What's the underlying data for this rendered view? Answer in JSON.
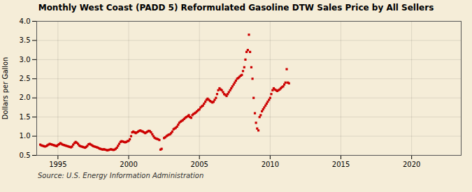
{
  "chart_data": {
    "type": "scatter",
    "title": "Monthly West Coast (PADD 5) Reformulated Gasoline DTW Sales Price by All Sellers",
    "ylabel": "Dollars per Gallon",
    "annotations": [
      "Source: U.S. Energy Information Administration"
    ],
    "color": "#cc0000",
    "marker": "square",
    "grid": true,
    "xlim": [
      1993.5,
      2023.5
    ],
    "ylim": [
      0.5,
      4.0
    ],
    "xticks": [
      1995,
      2000,
      2005,
      2010,
      2015,
      2020
    ],
    "yticks": [
      0.5,
      {
        "value": 1.0,
        "label": "1.0"
      },
      1.5,
      {
        "value": 2.0,
        "label": "2.0"
      },
      2.5,
      {
        "value": 3.0,
        "label": "3.0"
      },
      3.5,
      {
        "value": 4.0,
        "label": "4.0"
      }
    ],
    "x": [
      1993.75,
      1993.83,
      1993.92,
      1994.0,
      1994.08,
      1994.17,
      1994.25,
      1994.33,
      1994.42,
      1994.5,
      1994.58,
      1994.67,
      1994.75,
      1994.83,
      1994.92,
      1995.0,
      1995.08,
      1995.17,
      1995.25,
      1995.33,
      1995.42,
      1995.5,
      1995.58,
      1995.67,
      1995.75,
      1995.83,
      1995.92,
      1996.0,
      1996.08,
      1996.17,
      1996.25,
      1996.33,
      1996.42,
      1996.5,
      1996.58,
      1996.67,
      1996.75,
      1996.83,
      1996.92,
      1997.0,
      1997.08,
      1997.17,
      1997.25,
      1997.33,
      1997.42,
      1997.5,
      1997.58,
      1997.67,
      1997.75,
      1997.83,
      1997.92,
      1998.0,
      1998.08,
      1998.17,
      1998.25,
      1998.33,
      1998.42,
      1998.5,
      1998.58,
      1998.67,
      1998.75,
      1998.83,
      1998.92,
      1999.0,
      1999.08,
      1999.17,
      1999.25,
      1999.33,
      1999.42,
      1999.5,
      1999.58,
      1999.67,
      1999.75,
      1999.83,
      1999.92,
      2000.0,
      2000.08,
      2000.17,
      2000.25,
      2000.33,
      2000.42,
      2000.5,
      2000.58,
      2000.67,
      2000.75,
      2000.83,
      2000.92,
      2001.0,
      2001.08,
      2001.17,
      2001.25,
      2001.33,
      2001.42,
      2001.5,
      2001.58,
      2001.67,
      2001.75,
      2001.83,
      2001.92,
      2002.0,
      2002.08,
      2002.17,
      2002.25,
      2002.33,
      2002.5,
      2002.58,
      2002.67,
      2002.75,
      2002.83,
      2002.92,
      2003.0,
      2003.08,
      2003.17,
      2003.25,
      2003.33,
      2003.42,
      2003.5,
      2003.58,
      2003.67,
      2003.75,
      2003.83,
      2003.92,
      2004.0,
      2004.08,
      2004.17,
      2004.25,
      2004.33,
      2004.42,
      2004.5,
      2004.58,
      2004.67,
      2004.75,
      2004.83,
      2004.92,
      2005.0,
      2005.08,
      2005.17,
      2005.25,
      2005.33,
      2005.42,
      2005.5,
      2005.58,
      2005.67,
      2005.75,
      2005.83,
      2005.92,
      2006.0,
      2006.08,
      2006.17,
      2006.25,
      2006.33,
      2006.42,
      2006.5,
      2006.58,
      2006.67,
      2006.75,
      2006.83,
      2006.92,
      2007.0,
      2007.08,
      2007.17,
      2007.25,
      2007.33,
      2007.42,
      2007.5,
      2007.58,
      2007.67,
      2007.75,
      2007.83,
      2007.92,
      2008.0,
      2008.08,
      2008.17,
      2008.25,
      2008.33,
      2008.42,
      2008.5,
      2008.58,
      2008.67,
      2008.75,
      2008.83,
      2008.92,
      2009.0,
      2009.08,
      2009.17,
      2009.25,
      2009.33,
      2009.42,
      2009.5,
      2009.58,
      2009.67,
      2009.75,
      2009.83,
      2009.92,
      2010.0,
      2010.08,
      2010.17,
      2010.25,
      2010.33,
      2010.42,
      2010.5,
      2010.58,
      2010.67,
      2010.75,
      2010.83,
      2010.92,
      2011.0,
      2011.08,
      2011.17,
      2011.25,
      2011.33
    ],
    "values": [
      0.78,
      0.76,
      0.75,
      0.74,
      0.73,
      0.74,
      0.76,
      0.78,
      0.8,
      0.79,
      0.78,
      0.77,
      0.76,
      0.75,
      0.74,
      0.77,
      0.79,
      0.82,
      0.8,
      0.78,
      0.77,
      0.76,
      0.75,
      0.74,
      0.73,
      0.72,
      0.71,
      0.73,
      0.78,
      0.82,
      0.85,
      0.83,
      0.8,
      0.76,
      0.74,
      0.73,
      0.72,
      0.71,
      0.7,
      0.72,
      0.75,
      0.79,
      0.8,
      0.78,
      0.76,
      0.74,
      0.73,
      0.72,
      0.71,
      0.7,
      0.68,
      0.67,
      0.66,
      0.65,
      0.66,
      0.65,
      0.64,
      0.63,
      0.64,
      0.65,
      0.66,
      0.65,
      0.64,
      0.65,
      0.67,
      0.7,
      0.75,
      0.8,
      0.85,
      0.87,
      0.86,
      0.85,
      0.84,
      0.85,
      0.87,
      0.88,
      0.92,
      1.0,
      1.1,
      1.12,
      1.1,
      1.08,
      1.1,
      1.12,
      1.14,
      1.15,
      1.13,
      1.12,
      1.1,
      1.08,
      1.1,
      1.12,
      1.14,
      1.13,
      1.1,
      1.05,
      1.0,
      0.96,
      0.94,
      0.93,
      0.92,
      0.9,
      0.65,
      0.67,
      0.95,
      0.97,
      1.0,
      1.02,
      1.04,
      1.05,
      1.08,
      1.12,
      1.18,
      1.2,
      1.22,
      1.25,
      1.3,
      1.35,
      1.38,
      1.4,
      1.42,
      1.45,
      1.48,
      1.5,
      1.52,
      1.55,
      1.5,
      1.48,
      1.55,
      1.58,
      1.6,
      1.62,
      1.65,
      1.68,
      1.7,
      1.75,
      1.78,
      1.8,
      1.85,
      1.9,
      1.95,
      1.98,
      1.95,
      1.92,
      1.9,
      1.88,
      1.9,
      1.95,
      2.0,
      2.1,
      2.2,
      2.25,
      2.22,
      2.2,
      2.15,
      2.1,
      2.08,
      2.05,
      2.1,
      2.15,
      2.2,
      2.25,
      2.3,
      2.35,
      2.4,
      2.45,
      2.5,
      2.52,
      2.55,
      2.58,
      2.6,
      2.7,
      2.8,
      3.0,
      3.2,
      3.25,
      3.65,
      3.2,
      2.8,
      2.5,
      2.0,
      1.6,
      1.35,
      1.2,
      1.15,
      1.5,
      1.55,
      1.65,
      1.7,
      1.75,
      1.8,
      1.85,
      1.9,
      1.95,
      2.0,
      2.1,
      2.2,
      2.25,
      2.22,
      2.2,
      2.18,
      2.2,
      2.22,
      2.25,
      2.28,
      2.3,
      2.35,
      2.4,
      2.75,
      2.4,
      2.38
    ]
  }
}
